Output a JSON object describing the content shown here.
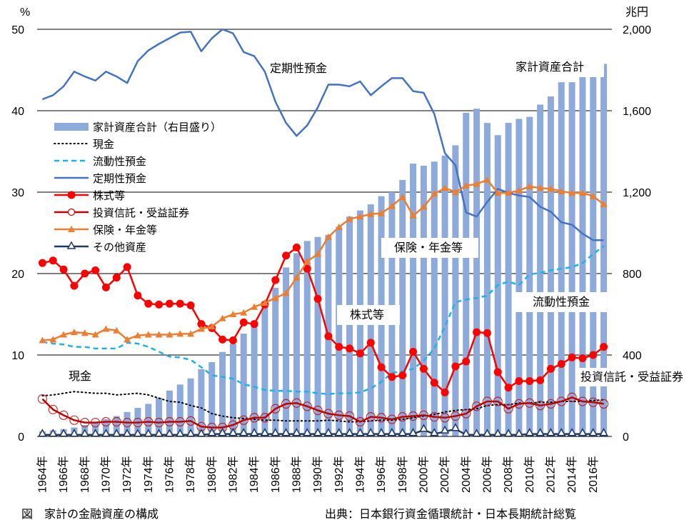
{
  "caption": "図　家計の金融資産の構成",
  "source": "出典：日本銀行資金循環統計・日本長期統計総覧",
  "chart_data": {
    "type": "bar+line",
    "title": "家計の金融資産の構成",
    "left_axis": {
      "unit": "%",
      "ylim": [
        0,
        50
      ],
      "ticks": [
        "0",
        "10",
        "20",
        "30",
        "40",
        "50"
      ]
    },
    "right_axis": {
      "unit": "兆円",
      "ylim": [
        0,
        2000
      ],
      "ticks": [
        "0",
        "400",
        "800",
        "1,200",
        "1,600",
        "2,000"
      ]
    },
    "grid": true,
    "years": [
      1964,
      1965,
      1966,
      1967,
      1968,
      1969,
      1970,
      1971,
      1972,
      1973,
      1974,
      1975,
      1976,
      1977,
      1978,
      1979,
      1980,
      1981,
      1982,
      1983,
      1984,
      1985,
      1986,
      1987,
      1988,
      1989,
      1990,
      1991,
      1992,
      1993,
      1994,
      1995,
      1996,
      1997,
      1998,
      1999,
      2000,
      2001,
      2002,
      2003,
      2004,
      2005,
      2006,
      2007,
      2008,
      2009,
      2010,
      2011,
      2012,
      2013,
      2014,
      2015,
      2016,
      2017
    ],
    "x_tick_labels": [
      "1964年",
      "1966年",
      "1968年",
      "1970年",
      "1972年",
      "1974年",
      "1976年",
      "1978年",
      "1980年",
      "1982年",
      "1984年",
      "1986年",
      "1988年",
      "1990年",
      "1992年",
      "1994年",
      "1996年",
      "1998年",
      "2000年",
      "2002年",
      "2004年",
      "2006年",
      "2008年",
      "2010年",
      "2012年",
      "2014年",
      "2016年"
    ],
    "bars": {
      "name": "家計資産合計（右目盛り）",
      "axis": "right",
      "color": "#8eaadb",
      "values": [
        25,
        30,
        36,
        44,
        56,
        70,
        85,
        100,
        120,
        140,
        160,
        190,
        225,
        255,
        285,
        330,
        365,
        415,
        455,
        505,
        565,
        640,
        730,
        830,
        900,
        960,
        980,
        990,
        1030,
        1080,
        1110,
        1140,
        1180,
        1200,
        1260,
        1340,
        1330,
        1350,
        1380,
        1430,
        1590,
        1610,
        1540,
        1480,
        1540,
        1560,
        1570,
        1630,
        1670,
        1740,
        1740,
        1780,
        1800,
        1830
      ]
    },
    "series": [
      {
        "name": "現金",
        "color": "#000000",
        "style": "dotted",
        "values": [
          5.0,
          5.1,
          5.3,
          5.5,
          5.4,
          5.3,
          5.3,
          5.1,
          5.2,
          5.3,
          5.1,
          4.7,
          4.3,
          4.2,
          3.8,
          3.5,
          2.8,
          2.5,
          2.3,
          2.2,
          2.1,
          2.0,
          2.0,
          1.9,
          1.9,
          1.9,
          1.9,
          2.0,
          1.9,
          1.8,
          1.8,
          1.9,
          2.0,
          2.0,
          2.1,
          2.3,
          2.5,
          2.7,
          3.0,
          3.2,
          3.3,
          3.4,
          3.8,
          3.9,
          3.9,
          4.1,
          4.1,
          4.2,
          4.2,
          4.3,
          4.3,
          4.3,
          4.4,
          4.5
        ]
      },
      {
        "name": "流動性預金",
        "color": "#1eb2e8",
        "style": "dashed",
        "values": [
          11.6,
          11.4,
          11.3,
          11.0,
          11.0,
          10.8,
          10.8,
          10.8,
          11.5,
          11.4,
          11.0,
          10.4,
          9.8,
          9.7,
          9.4,
          8.5,
          7.5,
          7.3,
          7.1,
          6.4,
          6.1,
          5.7,
          5.6,
          5.6,
          5.5,
          5.5,
          5.3,
          5.2,
          5.3,
          5.3,
          5.4,
          5.9,
          6.7,
          7.8,
          8.0,
          8.3,
          9.3,
          10.8,
          13.5,
          16.5,
          16.8,
          17.0,
          17.3,
          18.6,
          19.0,
          18.6,
          19.9,
          20.1,
          20.4,
          20.6,
          20.8,
          21.3,
          22.4,
          23.4
        ]
      },
      {
        "name": "定期性預金",
        "color": "#4472c4",
        "style": "solid",
        "values": [
          41.4,
          41.9,
          43.0,
          44.8,
          44.2,
          43.7,
          44.8,
          44.2,
          43.4,
          46.1,
          47.4,
          48.2,
          48.9,
          49.6,
          49.7,
          47.3,
          48.9,
          50.0,
          49.5,
          47.2,
          46.7,
          44.8,
          41.1,
          38.5,
          36.9,
          38.2,
          40.4,
          43.2,
          43.2,
          43.0,
          43.6,
          41.9,
          43.0,
          44.0,
          44.0,
          42.4,
          42.2,
          39.6,
          34.8,
          33.3,
          27.5,
          27.0,
          28.8,
          30.4,
          29.9,
          29.6,
          29.4,
          28.2,
          27.6,
          26.3,
          26.0,
          24.9,
          24.1,
          24.1
        ]
      },
      {
        "name": "株式等",
        "color": "#ff0000",
        "style": "solid",
        "marker": "filled-circle",
        "values": [
          21.3,
          21.6,
          20.5,
          18.5,
          20.0,
          20.4,
          18.3,
          19.5,
          20.8,
          17.3,
          16.3,
          16.2,
          16.3,
          16.3,
          16.1,
          13.8,
          13.3,
          11.9,
          11.8,
          14.0,
          13.8,
          16.2,
          19.2,
          22.2,
          23.2,
          20.6,
          16.9,
          12.3,
          11.0,
          10.8,
          10.2,
          11.5,
          8.5,
          7.3,
          7.5,
          10.4,
          8.3,
          6.6,
          5.4,
          8.6,
          9.2,
          12.8,
          12.7,
          7.9,
          6.0,
          6.8,
          6.8,
          6.9,
          8.3,
          8.9,
          9.7,
          9.6,
          10.0,
          11.0
        ]
      },
      {
        "name": "投資信託・受益証券",
        "color": "#c00000",
        "style": "solid",
        "marker": "open-circle",
        "values": [
          4.6,
          3.3,
          2.6,
          2.0,
          1.7,
          1.7,
          1.8,
          1.8,
          1.7,
          1.7,
          1.8,
          1.7,
          1.8,
          1.8,
          1.9,
          1.2,
          1.1,
          1.1,
          1.4,
          2.0,
          2.3,
          2.3,
          3.4,
          4.0,
          4.1,
          3.7,
          3.2,
          2.8,
          2.6,
          2.5,
          1.8,
          2.4,
          2.3,
          2.1,
          2.4,
          2.5,
          2.6,
          2.4,
          2.3,
          2.5,
          2.8,
          3.7,
          4.3,
          4.3,
          3.4,
          4.0,
          4.1,
          3.8,
          4.0,
          4.3,
          4.8,
          4.3,
          4.2,
          4.0
        ]
      },
      {
        "name": "保険・年金等",
        "color": "#ed7d31",
        "style": "solid",
        "marker": "filled-triangle",
        "values": [
          11.8,
          11.9,
          12.5,
          12.8,
          12.7,
          12.5,
          13.2,
          13.0,
          11.9,
          12.4,
          12.5,
          12.5,
          12.5,
          12.6,
          12.6,
          13.2,
          13.5,
          14.5,
          15.0,
          15.2,
          15.9,
          16.4,
          17.0,
          17.6,
          19.5,
          21.5,
          22.4,
          24.5,
          25.7,
          26.7,
          27.0,
          27.3,
          27.4,
          28.3,
          29.4,
          27.1,
          28.2,
          29.8,
          30.5,
          30.0,
          30.8,
          31.0,
          31.5,
          29.9,
          29.9,
          30.2,
          30.7,
          30.5,
          30.4,
          30.1,
          29.9,
          29.9,
          29.5,
          28.5
        ]
      },
      {
        "name": "その他資産",
        "color": "#203864",
        "style": "solid",
        "marker": "open-triangle",
        "values": [
          0.2,
          0.2,
          0.2,
          0.2,
          0.2,
          0.2,
          0.2,
          0.2,
          0.2,
          0.2,
          0.2,
          0.2,
          0.2,
          0.2,
          0.2,
          0.2,
          0.3,
          0.3,
          0.3,
          0.3,
          0.3,
          0.3,
          0.3,
          0.3,
          0.3,
          0.3,
          0.3,
          0.3,
          0.3,
          0.3,
          0.3,
          0.3,
          0.3,
          0.3,
          0.3,
          0.3,
          0.8,
          0.3,
          0.6,
          0.9,
          0.2,
          0.2,
          0.2,
          0.2,
          0.2,
          0.2,
          0.3,
          0.3,
          0.3,
          0.3,
          0.3,
          0.3,
          0.3,
          0.3
        ]
      }
    ],
    "legend": [
      "家計資産合計（右目盛り）",
      "現金",
      "流動性預金",
      "定期性預金",
      "株式等",
      "投資信託・受益証券",
      "保険・年金等",
      "その他資産"
    ],
    "legend_position": "left",
    "annotations": [
      {
        "text": "定期性預金"
      },
      {
        "text": "家計資産合計"
      },
      {
        "text": "保険・年金等"
      },
      {
        "text": "株式等"
      },
      {
        "text": "流動性預金"
      },
      {
        "text": "現金"
      },
      {
        "text": "投資信託・受益証券"
      }
    ]
  }
}
